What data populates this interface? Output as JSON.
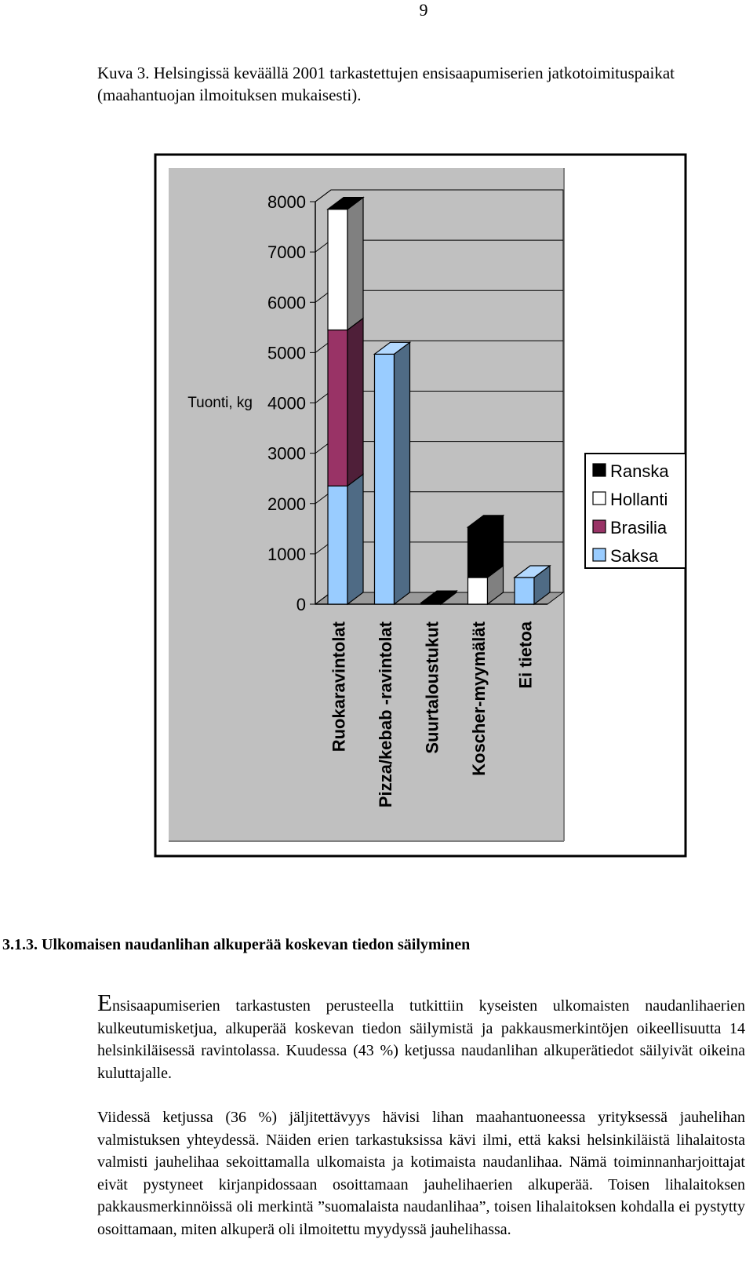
{
  "page": {
    "number": "9"
  },
  "caption": "Kuva 3. Helsingissä keväällä 2001 tarkastettujen ensisaapumiserien jatkotoimituspaikat (maahantuojan ilmoituksen mukaisesti).",
  "section": {
    "title": "3.1.3. Ulkomaisen naudanlihan alkuperää koskevan tiedon säilyminen"
  },
  "paragraphs": {
    "p1_initial": "E",
    "p1_rest": "nsisaapumiserien tarkastusten perusteella tutkittiin kyseisten ulkomaisten naudanlihaerien kulkeutumisketjua, alkuperää koskevan tiedon säilymistä ja pakkausmerkintöjen oikeellisuutta 14 helsinkiläisessä ravintolassa. Kuudessa (43 %) ketjussa naudanlihan alkuperätiedot säilyivät oikeina kuluttajalle.",
    "p2": "Viidessä ketjussa (36 %) jäljitettävyys hävisi lihan maahantuoneessa yrityksessä jauhelihan valmistuksen yhteydessä. Näiden erien tarkastuksissa kävi ilmi, että kaksi helsinkiläistä lihalaitosta valmisti jauhelihaa sekoittamalla ulkomaista ja kotimaista naudanlihaa. Nämä toiminnanharjoittajat eivät pystyneet kirjanpidossaan osoittamaan jauhelihaerien alkuperää. Toisen lihalaitoksen pakkausmerkinnöissä oli merkintä ”suomalaista naudanlihaa”, toisen lihalaitoksen kohdalla ei pystytty osoittamaan, miten alkuperä oli ilmoitettu myydyssä jauhelihassa."
  },
  "chart_data": {
    "type": "bar",
    "stacked": true,
    "three_d": true,
    "ylabel": "Tuonti, kg",
    "ylim": [
      0,
      8000
    ],
    "yticks": [
      "0",
      "1000",
      "2000",
      "3000",
      "4000",
      "5000",
      "6000",
      "7000",
      "8000"
    ],
    "categories": [
      "Ruokaravintolat",
      "Pizza/kebab -ravintolat",
      "Suurtaloustukut",
      "Koscher-myymälät",
      "Ei tietoa"
    ],
    "series": [
      {
        "name": "Saksa",
        "color": "#99ccff",
        "side": "#4f6b85",
        "top": "#b3d9ff",
        "values": [
          2350,
          4970,
          0,
          0,
          530
        ]
      },
      {
        "name": "Brasilia",
        "color": "#993366",
        "side": "#4f1f39",
        "top": "#7a2a52",
        "values": [
          3100,
          0,
          0,
          0,
          0
        ]
      },
      {
        "name": "Hollanti",
        "color": "#ffffff",
        "side": "#808080",
        "top": "#ffffff",
        "values": [
          2400,
          0,
          0,
          530,
          0
        ]
      },
      {
        "name": "Ranska",
        "color": "#000000",
        "side": "#000000",
        "top": "#000000",
        "values": [
          0,
          0,
          30,
          1000,
          0
        ]
      }
    ],
    "legend": {
      "placement": "right",
      "order": [
        "Ranska",
        "Hollanti",
        "Brasilia",
        "Saksa"
      ]
    },
    "plot_background": "#c0c0c0",
    "grid": true
  }
}
